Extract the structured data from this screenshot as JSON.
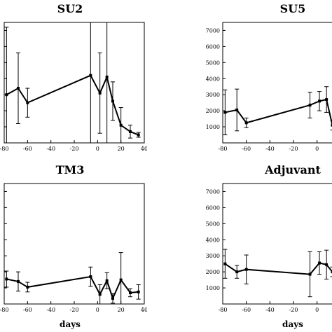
{
  "chart_data": [
    {
      "type": "line",
      "title": "SU2",
      "xlabel": "",
      "ylabel": "",
      "xlim": [
        -80,
        40
      ],
      "ylim": [
        0,
        7500
      ],
      "xticks": [
        "-80",
        "-60",
        "-40",
        "-20",
        "0",
        "20",
        "40"
      ],
      "yticks": [],
      "series": [
        {
          "x": [
            -78,
            -68,
            -60,
            -6,
            2,
            8,
            13,
            20,
            28,
            35
          ],
          "y": [
            3000,
            3400,
            2500,
            4200,
            3100,
            4100,
            2600,
            1100,
            700,
            500
          ],
          "err": [
            4200,
            2200,
            900,
            4600,
            2500,
            4100,
            1200,
            1100,
            400,
            150
          ]
        }
      ]
    },
    {
      "type": "line",
      "title": "SU5",
      "xlabel": "",
      "ylabel": "",
      "xlim": [
        -80,
        40
      ],
      "ylim": [
        0,
        7500
      ],
      "xticks": [
        "-80",
        "-60",
        "-40",
        "-20",
        "0"
      ],
      "yticks": [
        "1000",
        "2000",
        "3000",
        "4000",
        "5000",
        "6000",
        "7000"
      ],
      "series": [
        {
          "x": [
            -78,
            -68,
            -60,
            -6,
            2,
            8,
            13
          ],
          "y": [
            1900,
            2050,
            1250,
            2350,
            2600,
            2700,
            1100
          ],
          "err": [
            1400,
            1300,
            300,
            800,
            600,
            800,
            300
          ]
        }
      ]
    },
    {
      "type": "line",
      "title": "TM3",
      "xlabel": "days",
      "ylabel": "",
      "xlim": [
        -80,
        40
      ],
      "ylim": [
        0,
        7500
      ],
      "xticks": [
        "-80",
        "-60",
        "-40",
        "-20",
        "0",
        "20",
        "40"
      ],
      "yticks": [],
      "series": [
        {
          "x": [
            -78,
            -68,
            -60,
            -6,
            2,
            8,
            13,
            20,
            28,
            35
          ],
          "y": [
            1550,
            1400,
            1050,
            1700,
            600,
            1450,
            350,
            1500,
            700,
            750
          ],
          "err": [
            500,
            600,
            300,
            600,
            600,
            500,
            300,
            1700,
            250,
            450
          ]
        }
      ]
    },
    {
      "type": "line",
      "title": "Adjuvant",
      "xlabel": "days",
      "ylabel": "",
      "xlim": [
        -80,
        40
      ],
      "ylim": [
        0,
        7500
      ],
      "xticks": [
        "-80",
        "-60",
        "-40",
        "-20",
        "0",
        "20"
      ],
      "yticks": [
        "1000",
        "2000",
        "3000",
        "4000",
        "5000",
        "6000",
        "7000"
      ],
      "series": [
        {
          "x": [
            -78,
            -68,
            -60,
            -6,
            2,
            8,
            13
          ],
          "y": [
            2500,
            2000,
            2150,
            1850,
            2550,
            2450,
            2000
          ],
          "err": [
            900,
            400,
            900,
            1400,
            700,
            900,
            300
          ]
        }
      ]
    }
  ]
}
